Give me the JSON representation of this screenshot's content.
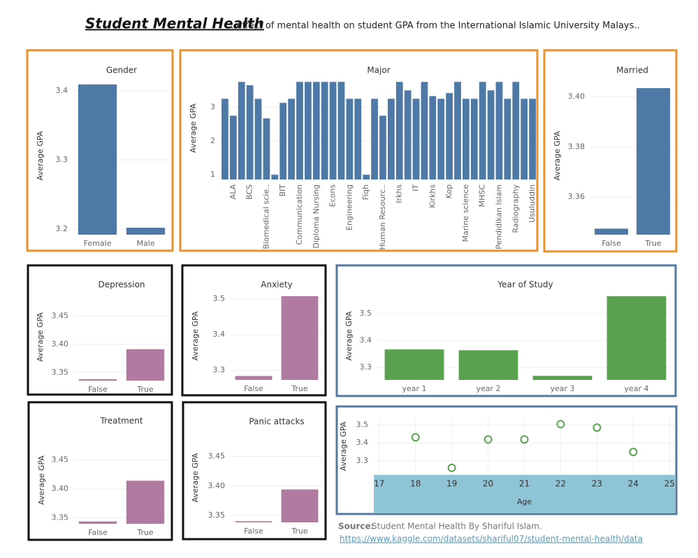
{
  "header": {
    "title": "Student Mental Health",
    "subtitle": ": effect of mental health on student GPA from the International Islamic University Malays.."
  },
  "chart_data": [
    {
      "type": "bar",
      "title": "Gender",
      "y_label": "Average GPA",
      "categories": [
        "Female",
        "Male"
      ],
      "values": [
        3.409,
        3.202
      ],
      "color": "#4e79a7",
      "ylim": [
        3.192,
        3.42
      ],
      "yticks": [
        3.2,
        3.3,
        3.4
      ],
      "grid": true
    },
    {
      "type": "bar",
      "title": "Major",
      "y_label": "Average GPA",
      "categories": [
        null,
        "ALA",
        null,
        "BCS",
        null,
        "Biomedical scie..",
        null,
        "BIT",
        null,
        "Communication",
        null,
        "Diploma Nursing",
        null,
        "Econs",
        null,
        "Engineering",
        null,
        "Fiqh",
        null,
        "Human Resourc..",
        null,
        "Irkhs",
        null,
        "IT",
        null,
        "Kirkhs",
        null,
        "Kop",
        null,
        "Marine science",
        null,
        "MHSC",
        null,
        "Pendidikan Islam",
        null,
        "Radiography",
        null,
        "Usuluddin"
      ],
      "values": [
        3.25,
        2.75,
        3.75,
        3.65,
        3.25,
        2.67,
        1.0,
        3.13,
        3.25,
        3.75,
        3.75,
        3.75,
        3.75,
        3.75,
        3.75,
        3.25,
        3.25,
        1.0,
        3.25,
        2.75,
        3.25,
        3.75,
        3.5,
        3.25,
        3.75,
        3.33,
        3.25,
        3.42,
        3.75,
        3.25,
        3.25,
        3.75,
        3.5,
        3.75,
        3.25,
        3.75,
        3.25,
        3.25
      ],
      "color": "#4e79a7",
      "ylim": [
        0.86,
        3.9
      ],
      "yticks": [
        1,
        2,
        3
      ],
      "grid": true
    },
    {
      "type": "bar",
      "title": "Married",
      "y_label": "Average GPA",
      "categories": [
        "False",
        "True"
      ],
      "values": [
        3.3474,
        3.4035
      ],
      "color": "#4e79a7",
      "ylim": [
        3.345,
        3.408
      ],
      "yticks": [
        3.36,
        3.38,
        {
          "value": 3.4,
          "label": "3.40"
        }
      ],
      "grid": true
    },
    {
      "type": "bar",
      "title": "Depression",
      "y_label": "Average GPA",
      "categories": [
        "False",
        "True"
      ],
      "values": [
        3.338,
        3.391
      ],
      "color": "#b07aa1",
      "ylim": [
        3.3355,
        3.49
      ],
      "yticks": [
        3.35,
        {
          "value": 3.4,
          "label": "3.40"
        },
        3.45
      ],
      "grid": true
    },
    {
      "type": "bar",
      "title": "Anxiety",
      "y_label": "Average GPA",
      "categories": [
        "False",
        "True"
      ],
      "values": [
        3.284,
        3.508
      ],
      "color": "#b07aa1",
      "ylim": [
        3.273,
        3.52
      ],
      "yticks": [
        3.3,
        3.4,
        3.5
      ],
      "grid": true
    },
    {
      "type": "bar",
      "title": "Year of Study",
      "y_label": "Average GPA",
      "categories": [
        "year 1",
        "year 2",
        "year 3",
        "year 4"
      ],
      "values": [
        3.367,
        3.364,
        3.269,
        3.564
      ],
      "color": "#59a14f",
      "ylim": [
        3.254,
        3.58
      ],
      "yticks": [
        3.3,
        3.4,
        3.5
      ],
      "grid": true
    },
    {
      "type": "bar",
      "title": "Treatment",
      "y_label": "Average GPA",
      "categories": [
        "False",
        "True"
      ],
      "values": [
        3.344,
        3.414
      ],
      "color": "#b07aa1",
      "ylim": [
        3.34,
        3.49
      ],
      "yticks": [
        3.35,
        {
          "value": 3.4,
          "label": "3.40"
        },
        3.45
      ],
      "grid": true
    },
    {
      "type": "bar",
      "title": "Panic attacks",
      "y_label": "Average GPA",
      "categories": [
        "False",
        "True"
      ],
      "values": [
        3.34,
        3.394
      ],
      "color": "#b07aa1",
      "ylim": [
        3.338,
        3.49
      ],
      "yticks": [
        3.35,
        {
          "value": 3.4,
          "label": "3.40"
        },
        3.45
      ],
      "grid": true
    },
    {
      "type": "scatter",
      "x_label": "Age",
      "y_label": "Average GPA",
      "x": [
        18,
        19,
        20,
        21,
        22,
        23,
        24
      ],
      "values": [
        3.431,
        3.262,
        3.419,
        3.419,
        3.504,
        3.485,
        3.35
      ],
      "color": "#59a14f",
      "xlim": [
        16.85,
        25.15
      ],
      "xticks": [
        17,
        18,
        19,
        20,
        21,
        22,
        23,
        24,
        25
      ],
      "ylim": [
        3.223,
        3.54
      ],
      "yticks": [
        3.3,
        3.4,
        3.5
      ],
      "grid": true
    }
  ],
  "source": {
    "label": "Source:",
    "text": "Student Mental Health By Shariful Islam.",
    "url": "https://www.kaggle.com/datasets/shariful07/student-mental-health/data"
  }
}
